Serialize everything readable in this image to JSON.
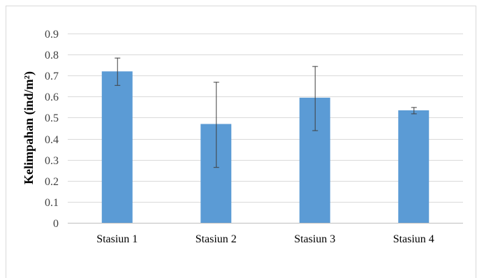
{
  "chart_data": {
    "type": "bar",
    "title": "",
    "xlabel": "",
    "ylabel": "Kelimpahan (ind/m²)",
    "categories": [
      "Stasiun 1",
      "Stasiun 2",
      "Stasiun 3",
      "Stasiun 4"
    ],
    "values": [
      0.72,
      0.47,
      0.595,
      0.535
    ],
    "error_low": [
      0.655,
      0.265,
      0.44,
      0.52
    ],
    "error_high": [
      0.785,
      0.67,
      0.745,
      0.55
    ],
    "ylim": [
      0,
      0.9
    ],
    "yticks": [
      "0",
      "0.1",
      "0.2",
      "0.3",
      "0.4",
      "0.5",
      "0.6",
      "0.7",
      "0.8",
      "0.9"
    ],
    "grid": true,
    "legend": "none",
    "bar_color": "#5b9bd5",
    "grid_color": "#d9d9d9",
    "error_bar_color": "#404040"
  }
}
